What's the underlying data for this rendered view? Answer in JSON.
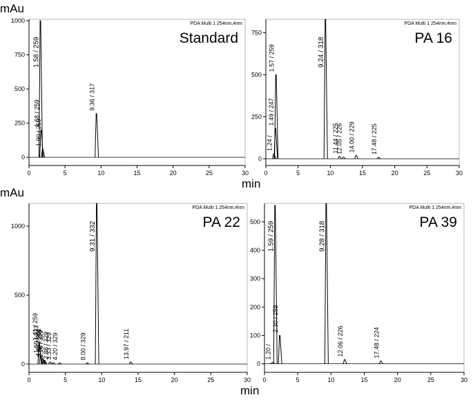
{
  "chart_data": [
    {
      "type": "chromatogram",
      "title": "Standard",
      "header": "PDA Multi 1 254nm,4nm",
      "y_label": "mAu",
      "xlim": [
        0,
        30
      ],
      "xticks": [
        0,
        5,
        10,
        15,
        20,
        25,
        30
      ],
      "ylim": [
        -60,
        1010
      ],
      "yticks": [
        0,
        250,
        500,
        750,
        1000
      ],
      "color": "#000000",
      "peaks": {
        "x": [
          1.58,
          1.68,
          1.9,
          9.36
        ],
        "values": [
          1000,
          200,
          60,
          320
        ],
        "labels": [
          "1.58 / 259",
          "1.68 / 259",
          "1.90 / 259",
          "9.36 / 317"
        ]
      }
    },
    {
      "type": "chromatogram",
      "title": "PA 16",
      "header": "PDA Multi 1 254nm,4nm",
      "x_label": "min",
      "xlim": [
        0,
        30
      ],
      "xticks": [
        0,
        5,
        10,
        15,
        20,
        25,
        30
      ],
      "ylim": [
        -40,
        830
      ],
      "yticks": [
        0,
        250,
        500,
        750
      ],
      "color": "#000000",
      "peaks": {
        "x": [
          1.24,
          1.49,
          1.57,
          9.24,
          11.44,
          12.05,
          14.0,
          17.48
        ],
        "values": [
          30,
          180,
          500,
          830,
          15,
          10,
          20,
          8
        ],
        "labels": [
          "1.24 /",
          "1.49 / 247",
          "1.57 / 259",
          "9.24 / 318",
          "11.44 / 225",
          "12.05 / 226",
          "14.00 / 229",
          "17.48 / 225"
        ]
      }
    },
    {
      "type": "chromatogram",
      "title": "PA 22",
      "header": "PDA Multi 1 254nm,4nm",
      "y_label": "mAu",
      "xlim": [
        0,
        30
      ],
      "xticks": [
        0,
        5,
        10,
        15,
        20,
        25,
        30
      ],
      "ylim": [
        -60,
        1165
      ],
      "yticks": [
        0,
        500,
        1000
      ],
      "color": "#000000",
      "peaks": {
        "x": [
          1.41,
          1.59,
          1.87,
          2.02,
          2.16,
          2.88,
          3.33,
          4.2,
          8.0,
          9.31,
          13.97
        ],
        "values": [
          150,
          60,
          40,
          30,
          25,
          15,
          10,
          8,
          8,
          1165,
          15
        ],
        "labels": [
          "1.41 / 259",
          "1.59 / 323",
          "1.87 / 261",
          "2.02 / 259",
          "2.16 / 329",
          "2.88 / 329",
          "3.33 / 329",
          "4.20 / 329",
          "8.00 / 329",
          "9.31 / 332",
          "13.97 / 211"
        ]
      }
    },
    {
      "type": "chromatogram",
      "title": "PA 39",
      "header": "PDA Multi 1 254nm,4nm",
      "x_label": "min",
      "xlim": [
        0,
        30
      ],
      "xticks": [
        0,
        5,
        10,
        15,
        20,
        25,
        30
      ],
      "ylim": [
        -30,
        565
      ],
      "yticks": [
        0,
        100,
        200,
        300,
        400,
        500
      ],
      "color": "#000000",
      "peaks": {
        "x": [
          1.2,
          1.59,
          2.3,
          9.28,
          12.06,
          17.48
        ],
        "values": [
          5,
          558,
          100,
          565,
          15,
          10
        ],
        "labels": [
          "1.20 /",
          "1.59 / 259",
          "2.30 / 259",
          "9.28 / 318",
          "12.06 / 226",
          "17.48 / 224"
        ]
      }
    }
  ]
}
